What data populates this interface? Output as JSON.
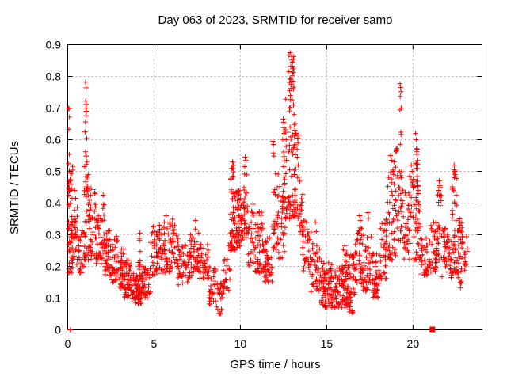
{
  "chart_data": {
    "type": "scatter",
    "title": "Day 063 of 2023, SRMTID for receiver samo",
    "xlabel": "GPS time / hours",
    "ylabel": "SRMTID / TECUs",
    "xlim": [
      0,
      24
    ],
    "ylim": [
      0,
      0.9
    ],
    "xticks": [
      0,
      5,
      10,
      15,
      20
    ],
    "xtick_labels": [
      "0",
      "5",
      "10",
      "15",
      "20"
    ],
    "yticks": [
      0,
      0.1,
      0.2,
      0.3,
      0.4,
      0.5,
      0.6,
      0.7,
      0.8,
      0.9
    ],
    "ytick_labels": [
      "0",
      "0.1",
      "0.2",
      "0.3",
      "0.4",
      "0.5",
      "0.6",
      "0.7",
      "0.8",
      "0.9"
    ],
    "grid": true,
    "legend": "none",
    "marker": "plus",
    "marker_color": "#ff0000",
    "grid_color": "#b0b0b0",
    "axis_color": "#000000",
    "background_color": "#ffffff",
    "series": [
      {
        "name": "SRMTID",
        "marker": "plus",
        "color": "#ff0000",
        "note": "dense point cloud approximated by density bins [x_start_hour, x_end_hour, y_min, y_max, n_points] plus explicit outlier points",
        "density_bins": [
          [
            0.02,
            0.3,
            0.18,
            0.52,
            55
          ],
          [
            0.03,
            0.14,
            0.44,
            0.56,
            8
          ],
          [
            0.3,
            0.6,
            0.2,
            0.4,
            26
          ],
          [
            0.6,
            0.95,
            0.18,
            0.32,
            26
          ],
          [
            0.95,
            1.25,
            0.22,
            0.66,
            44
          ],
          [
            1.25,
            1.6,
            0.22,
            0.45,
            30
          ],
          [
            1.6,
            2.0,
            0.2,
            0.4,
            35
          ],
          [
            2.0,
            2.15,
            0.24,
            0.41,
            12
          ],
          [
            2.1,
            2.5,
            0.17,
            0.32,
            35
          ],
          [
            2.5,
            2.9,
            0.15,
            0.3,
            35
          ],
          [
            2.9,
            3.3,
            0.13,
            0.26,
            38
          ],
          [
            3.3,
            3.7,
            0.1,
            0.22,
            45
          ],
          [
            3.7,
            4.3,
            0.08,
            0.18,
            60
          ],
          [
            4.1,
            4.25,
            0.17,
            0.29,
            10
          ],
          [
            4.3,
            4.8,
            0.1,
            0.2,
            40
          ],
          [
            4.8,
            5.3,
            0.17,
            0.33,
            40
          ],
          [
            5.3,
            6.1,
            0.18,
            0.35,
            65
          ],
          [
            6.1,
            6.4,
            0.19,
            0.33,
            20
          ],
          [
            6.4,
            6.8,
            0.14,
            0.28,
            28
          ],
          [
            6.8,
            7.25,
            0.15,
            0.3,
            33
          ],
          [
            7.25,
            7.6,
            0.18,
            0.32,
            30
          ],
          [
            7.6,
            8.2,
            0.16,
            0.27,
            42
          ],
          [
            8.2,
            8.6,
            0.08,
            0.2,
            30
          ],
          [
            8.6,
            9.0,
            0.05,
            0.16,
            24
          ],
          [
            9.0,
            9.4,
            0.12,
            0.28,
            22
          ],
          [
            9.4,
            9.7,
            0.25,
            0.51,
            45
          ],
          [
            9.7,
            10.0,
            0.26,
            0.45,
            40
          ],
          [
            10.0,
            10.2,
            0.22,
            0.42,
            18
          ],
          [
            10.2,
            10.45,
            0.28,
            0.5,
            25
          ],
          [
            10.45,
            10.8,
            0.2,
            0.4,
            28
          ],
          [
            10.8,
            11.4,
            0.18,
            0.38,
            52
          ],
          [
            11.4,
            11.85,
            0.15,
            0.33,
            40
          ],
          [
            11.85,
            12.2,
            0.25,
            0.5,
            32
          ],
          [
            12.2,
            12.6,
            0.22,
            0.5,
            30
          ],
          [
            12.45,
            12.62,
            0.45,
            0.64,
            9
          ],
          [
            12.6,
            13.2,
            0.35,
            0.78,
            62
          ],
          [
            12.8,
            13.15,
            0.78,
            0.87,
            12
          ],
          [
            13.1,
            13.45,
            0.35,
            0.62,
            28
          ],
          [
            13.4,
            13.65,
            0.3,
            0.45,
            18
          ],
          [
            13.6,
            14.1,
            0.18,
            0.35,
            32
          ],
          [
            14.1,
            14.6,
            0.12,
            0.28,
            35
          ],
          [
            14.6,
            15.3,
            0.07,
            0.22,
            70
          ],
          [
            15.3,
            16.3,
            0.07,
            0.2,
            95
          ],
          [
            15.9,
            16.25,
            0.19,
            0.27,
            12
          ],
          [
            16.3,
            16.65,
            0.05,
            0.25,
            35
          ],
          [
            16.65,
            17.1,
            0.14,
            0.33,
            40
          ],
          [
            17.1,
            17.6,
            0.12,
            0.3,
            40
          ],
          [
            17.6,
            18.1,
            0.1,
            0.24,
            40
          ],
          [
            18.1,
            18.5,
            0.16,
            0.35,
            35
          ],
          [
            18.5,
            19.0,
            0.22,
            0.52,
            45
          ],
          [
            19.0,
            19.4,
            0.28,
            0.6,
            35
          ],
          [
            19.4,
            19.85,
            0.22,
            0.45,
            33
          ],
          [
            19.8,
            20.05,
            0.35,
            0.5,
            14
          ],
          [
            20.05,
            20.45,
            0.22,
            0.42,
            33
          ],
          [
            20.1,
            20.32,
            0.42,
            0.6,
            12
          ],
          [
            20.45,
            21.0,
            0.17,
            0.3,
            40
          ],
          [
            21.0,
            21.4,
            0.18,
            0.34,
            35
          ],
          [
            21.4,
            21.65,
            0.22,
            0.46,
            18
          ],
          [
            21.65,
            22.25,
            0.16,
            0.32,
            45
          ],
          [
            22.25,
            22.6,
            0.18,
            0.49,
            38
          ],
          [
            22.6,
            22.9,
            0.13,
            0.34,
            30
          ],
          [
            22.9,
            23.18,
            0.18,
            0.3,
            12
          ]
        ],
        "outlier_points": [
          [
            0.05,
            0.7
          ],
          [
            0.08,
            0.697
          ],
          [
            0.1,
            0.672
          ],
          [
            0.07,
            0.633
          ],
          [
            0.4,
            0.44
          ],
          [
            0.46,
            0.415
          ],
          [
            1.03,
            0.782
          ],
          [
            1.06,
            0.764
          ],
          [
            1.04,
            0.722
          ],
          [
            1.07,
            0.712
          ],
          [
            1.05,
            0.7
          ],
          [
            1.08,
            0.69
          ],
          [
            1.06,
            0.676
          ],
          [
            1.1,
            0.604
          ],
          [
            1.03,
            0.562
          ],
          [
            1.04,
            0.467
          ],
          [
            2.05,
            0.425
          ],
          [
            4.18,
            0.305
          ],
          [
            5.7,
            0.36
          ],
          [
            7.4,
            0.345
          ],
          [
            9.55,
            0.53
          ],
          [
            9.6,
            0.52
          ],
          [
            9.5,
            0.51
          ],
          [
            10.28,
            0.545
          ],
          [
            10.32,
            0.535
          ],
          [
            10.25,
            0.515
          ],
          [
            11.88,
            0.595
          ],
          [
            11.92,
            0.585
          ],
          [
            11.9,
            0.558
          ],
          [
            11.95,
            0.548
          ],
          [
            12.48,
            0.665
          ],
          [
            12.51,
            0.655
          ],
          [
            12.53,
            0.62
          ],
          [
            12.88,
            0.875
          ],
          [
            12.97,
            0.852
          ],
          [
            13.02,
            0.845
          ],
          [
            12.92,
            0.832
          ],
          [
            13.06,
            0.824
          ],
          [
            12.82,
            0.815
          ],
          [
            13.0,
            0.802
          ],
          [
            12.86,
            0.792
          ],
          [
            13.05,
            0.785
          ],
          [
            12.95,
            0.775
          ],
          [
            13.1,
            0.766
          ],
          [
            12.9,
            0.74
          ],
          [
            13.0,
            0.726
          ],
          [
            13.08,
            0.71
          ],
          [
            12.85,
            0.7
          ],
          [
            13.12,
            0.648
          ],
          [
            13.15,
            0.63
          ],
          [
            13.3,
            0.545
          ],
          [
            13.35,
            0.52
          ],
          [
            14.35,
            0.34
          ],
          [
            14.4,
            0.31
          ],
          [
            16.9,
            0.36
          ],
          [
            16.95,
            0.345
          ],
          [
            17.38,
            0.37
          ],
          [
            17.42,
            0.352
          ],
          [
            18.7,
            0.55
          ],
          [
            18.75,
            0.535
          ],
          [
            18.9,
            0.53
          ],
          [
            18.85,
            0.5
          ],
          [
            19.25,
            0.777
          ],
          [
            19.28,
            0.765
          ],
          [
            19.3,
            0.752
          ],
          [
            19.26,
            0.737
          ],
          [
            19.32,
            0.7
          ],
          [
            19.24,
            0.694
          ],
          [
            19.29,
            0.624
          ],
          [
            19.31,
            0.617
          ],
          [
            19.9,
            0.52
          ],
          [
            19.95,
            0.5
          ],
          [
            20.15,
            0.62
          ],
          [
            20.18,
            0.6
          ],
          [
            20.2,
            0.572
          ],
          [
            20.22,
            0.562
          ],
          [
            20.17,
            0.524
          ],
          [
            20.25,
            0.484
          ],
          [
            20.28,
            0.455
          ],
          [
            20.3,
            0.43
          ],
          [
            21.52,
            0.47
          ],
          [
            21.56,
            0.455
          ],
          [
            21.49,
            0.44
          ],
          [
            21.6,
            0.425
          ],
          [
            22.38,
            0.52
          ],
          [
            22.4,
            0.505
          ],
          [
            22.42,
            0.5
          ],
          [
            22.36,
            0.495
          ],
          [
            22.44,
            0.49
          ],
          [
            22.39,
            0.48
          ],
          [
            22.7,
            0.35
          ],
          [
            22.72,
            0.33
          ]
        ]
      }
    ],
    "special_points": [
      {
        "x": 0.15,
        "y": 0.0,
        "marker": "plus"
      },
      {
        "x": 21.12,
        "y": 0.0,
        "marker": "filled-square"
      }
    ]
  }
}
